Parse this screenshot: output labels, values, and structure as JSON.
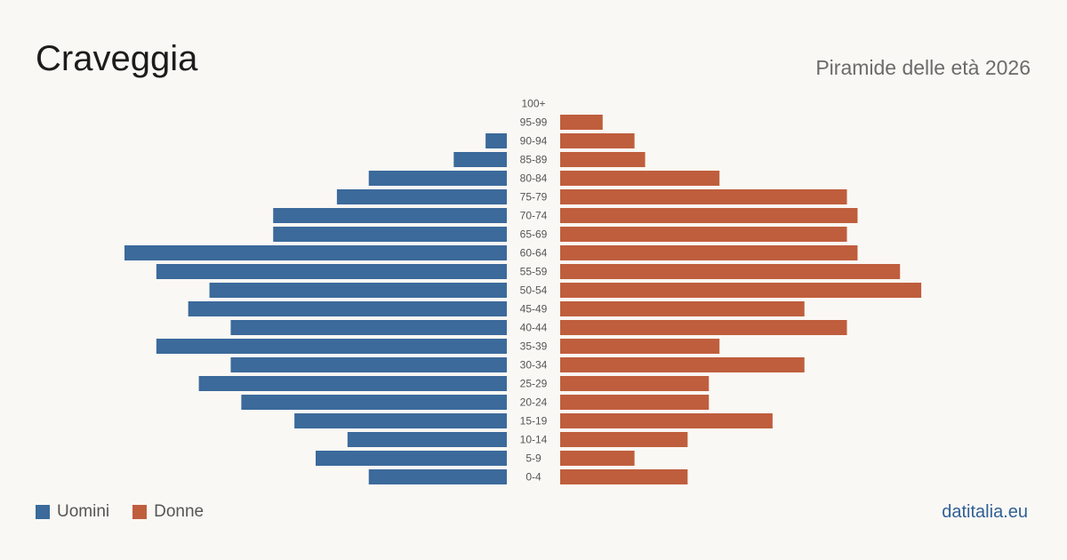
{
  "header": {
    "title": "Craveggia",
    "subtitle": "Piramide delle età 2026"
  },
  "colors": {
    "male": "#3b6a9b",
    "female": "#bf5e3d",
    "label": "#555555"
  },
  "chart_data": {
    "type": "bar",
    "orientation": "horizontal-pyramid",
    "categories": [
      "100+",
      "95-99",
      "90-94",
      "85-89",
      "80-84",
      "75-79",
      "70-74",
      "65-69",
      "60-64",
      "55-59",
      "50-54",
      "45-49",
      "40-44",
      "35-39",
      "30-34",
      "25-29",
      "20-24",
      "15-19",
      "10-14",
      "5-9",
      "0-4"
    ],
    "series": [
      {
        "name": "Uomini",
        "values": [
          0,
          0,
          2,
          5,
          13,
          16,
          22,
          22,
          36,
          33,
          28,
          30,
          26,
          33,
          26,
          29,
          25,
          20,
          15,
          18,
          13
        ]
      },
      {
        "name": "Donne",
        "values": [
          0,
          4,
          7,
          8,
          15,
          27,
          28,
          27,
          28,
          32,
          34,
          23,
          27,
          15,
          23,
          14,
          14,
          20,
          12,
          7,
          12
        ]
      }
    ],
    "xlim": [
      0,
      36
    ],
    "grid": false,
    "legend": "bottom-left"
  },
  "footer": {
    "brand": "datitalia.eu"
  }
}
